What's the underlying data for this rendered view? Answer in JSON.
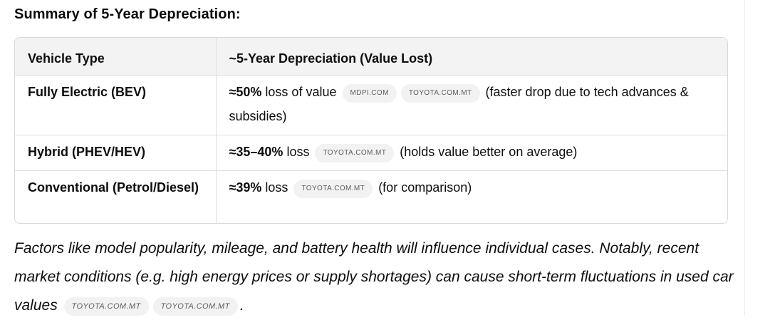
{
  "heading": "Summary of 5-Year Depreciation:",
  "table": {
    "headers": [
      "Vehicle Type",
      "~5-Year Depreciation (Value Lost)"
    ],
    "rows": [
      {
        "type": "Fully Electric (BEV)",
        "value": "≈50%",
        "text": "loss of value",
        "sources": [
          "MDPI.COM",
          "TOYOTA.COM.MT"
        ],
        "note": "(faster drop due to tech advances & subsidies)"
      },
      {
        "type": "Hybrid (PHEV/HEV)",
        "value": "≈35–40%",
        "text": "loss",
        "sources": [
          "TOYOTA.COM.MT"
        ],
        "note": "(holds value better on average)"
      },
      {
        "type": "Conventional (Petrol/Diesel)",
        "value": "≈39%",
        "text": "loss",
        "sources": [
          "TOYOTA.COM.MT"
        ],
        "note": "(for comparison)"
      }
    ]
  },
  "paragraph": {
    "text": "Factors like model popularity, mileage, and battery health will influence individual cases. Notably, recent market conditions (e.g. high energy prices or supply shortages) can cause short-term fluctuations in used car values",
    "sources": [
      "TOYOTA.COM.MT",
      "TOYOTA.COM.MT"
    ],
    "end": "."
  }
}
